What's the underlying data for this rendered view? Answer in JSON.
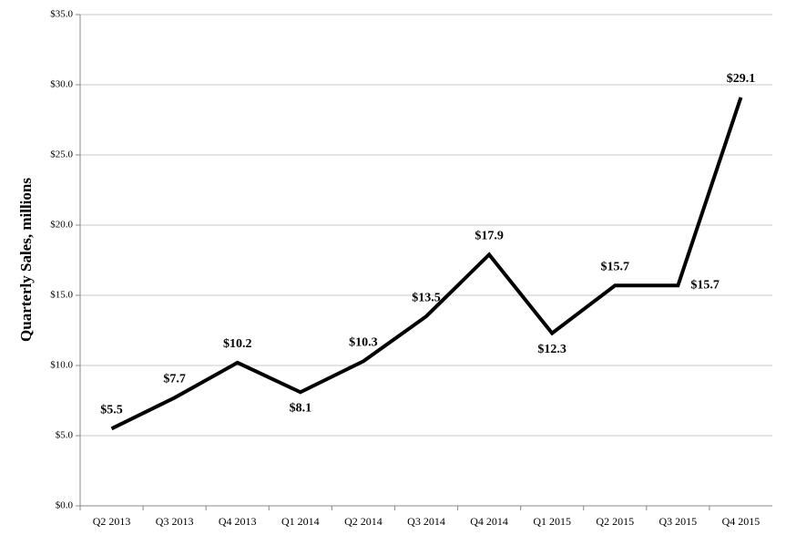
{
  "chart_data": {
    "type": "line",
    "y_label": "Quarterly Sales, millions",
    "categories": [
      "Q2 2013",
      "Q3 2013",
      "Q4 2013",
      "Q1 2014",
      "Q2 2014",
      "Q3 2014",
      "Q4 2014",
      "Q1 2015",
      "Q2 2015",
      "Q3 2015",
      "Q4 2015"
    ],
    "series": [
      {
        "name": "Quarterly Sales",
        "color": "#000000",
        "values": [
          5.5,
          7.7,
          10.2,
          8.1,
          10.3,
          13.5,
          17.9,
          12.3,
          15.7,
          15.7,
          29.1
        ],
        "value_labels": [
          "$5.5",
          "$7.7",
          "$10.2",
          "$8.1",
          "$10.3",
          "$13.5",
          "$17.9",
          "$12.3",
          "$15.7",
          "$15.7",
          "$29.1"
        ]
      }
    ],
    "ylim": [
      0,
      35
    ],
    "yticks": [
      {
        "value": 0,
        "label": "$0.0"
      },
      {
        "value": 5,
        "label": "$5.0"
      },
      {
        "value": 10,
        "label": "$10.0"
      },
      {
        "value": 15,
        "label": "$15.0"
      },
      {
        "value": 20,
        "label": "$20.0"
      },
      {
        "value": 25,
        "label": "$25.0"
      },
      {
        "value": 30,
        "label": "$30.0"
      },
      {
        "value": 35,
        "label": "$35.0"
      }
    ],
    "grid": true
  }
}
